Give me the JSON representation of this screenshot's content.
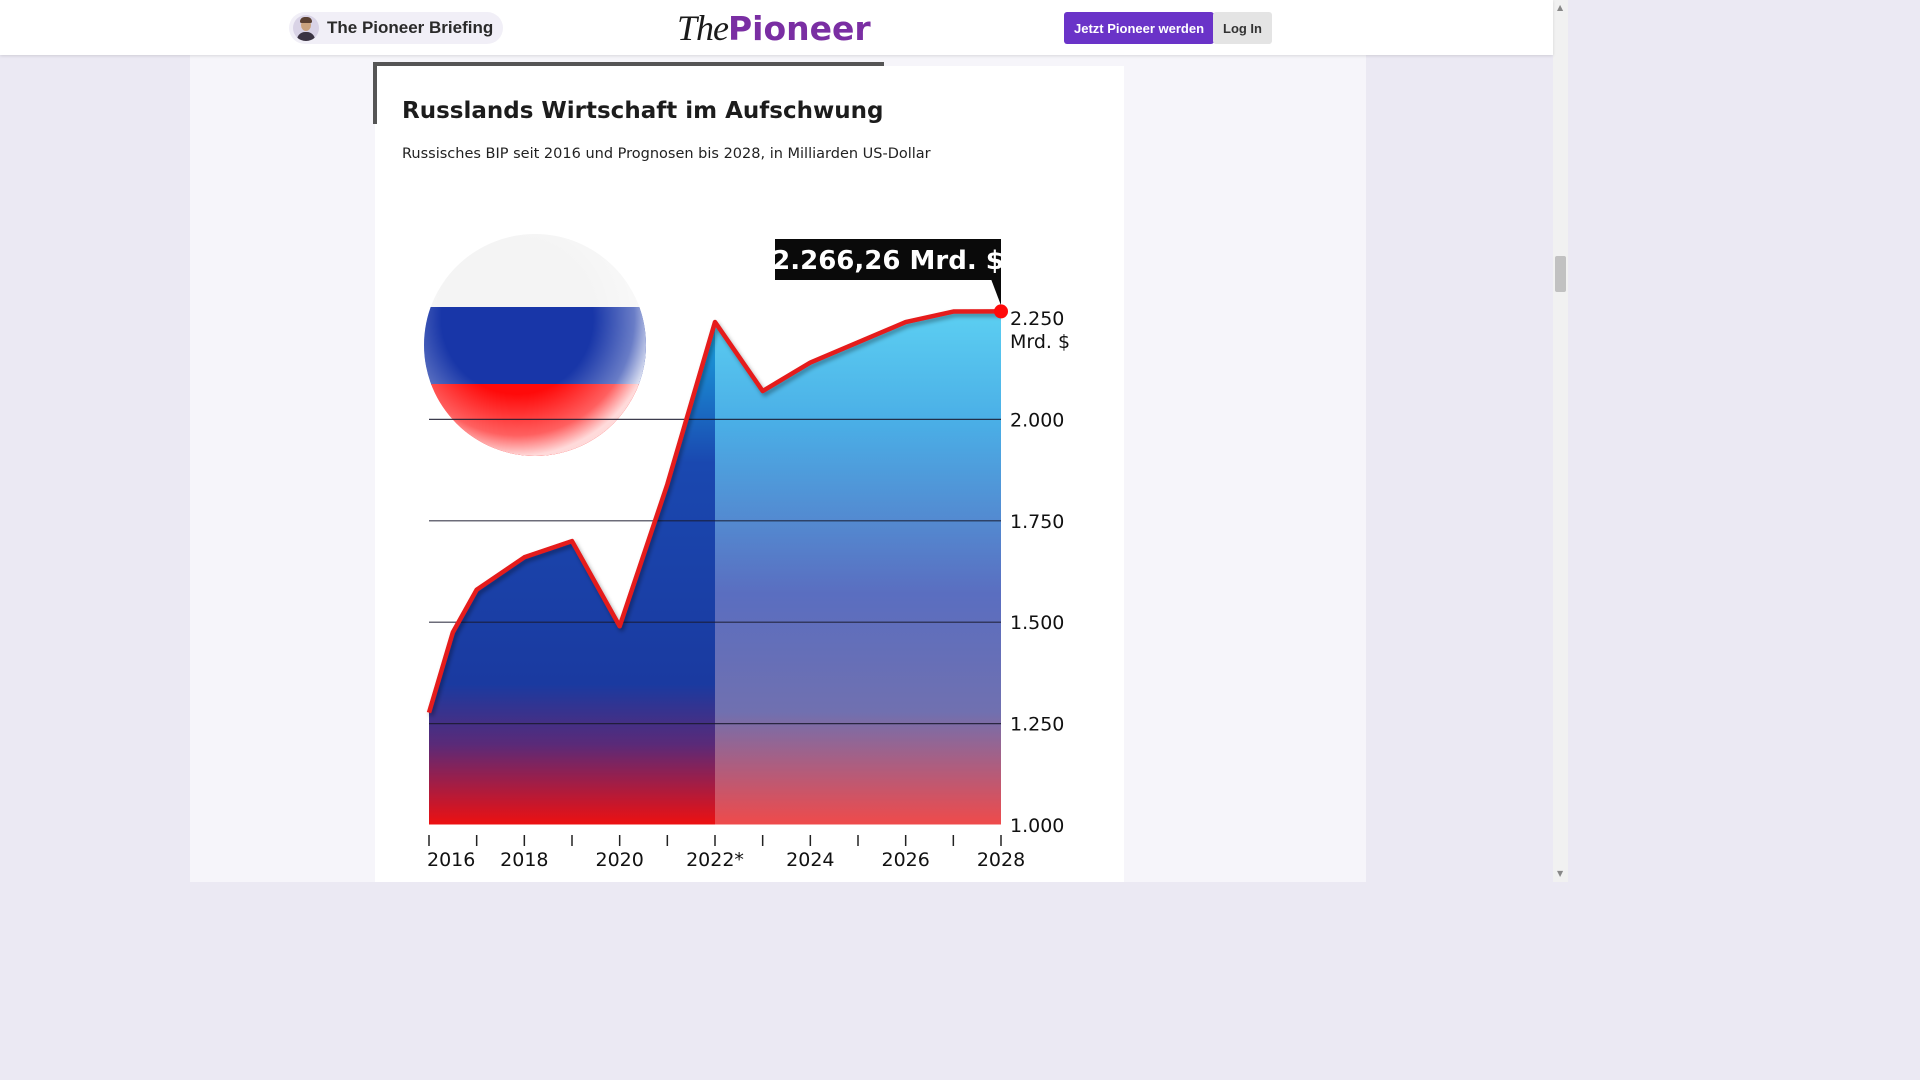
{
  "header": {
    "briefing_label": "The Pioneer Briefing",
    "logo_the": "The",
    "logo_pioneer": "Pioneer",
    "join_button": "Jetzt Pioneer werden",
    "login_button": "Log In"
  },
  "colors": {
    "brand_purple": "#7a2ea3",
    "button_purple": "#6a33c8",
    "line_red": "#e51a1a",
    "area_blue": "#1a3aa0",
    "area_cyan": "#5ccff2"
  },
  "chart_data": {
    "type": "area",
    "title": "Russlands Wirtschaft im Aufschwung",
    "subtitle": "Russisches BIP seit 2016 und Prognosen bis 2028, in Milliarden US-Dollar",
    "x": [
      2016,
      2016.5,
      2017,
      2018,
      2019,
      2020,
      2021,
      2022,
      2023,
      2024,
      2025,
      2026,
      2027,
      2028
    ],
    "values": [
      1277,
      1475,
      1580,
      1660,
      1700,
      1490,
      1840,
      2240,
      2070,
      2140,
      2190,
      2240,
      2266,
      2266.26
    ],
    "forecast_from": 2022,
    "xlim": [
      2016,
      2028
    ],
    "ylim": [
      1000,
      2250
    ],
    "x_ticks": [
      2016,
      2017,
      2018,
      2019,
      2020,
      2021,
      2022,
      2023,
      2024,
      2025,
      2026,
      2027,
      2028
    ],
    "x_tick_labels": [
      {
        "x": 2016,
        "label": "2016"
      },
      {
        "x": 2018,
        "label": "2018"
      },
      {
        "x": 2020,
        "label": "2020"
      },
      {
        "x": 2022,
        "label": "2022*"
      },
      {
        "x": 2024,
        "label": "2024"
      },
      {
        "x": 2026,
        "label": "2026"
      },
      {
        "x": 2028,
        "label": "2028"
      }
    ],
    "y_ticks": [
      {
        "value": 1000,
        "label": "1.000"
      },
      {
        "value": 1250,
        "label": "1.250"
      },
      {
        "value": 1500,
        "label": "1.500"
      },
      {
        "value": 1750,
        "label": "1.750"
      },
      {
        "value": 2000,
        "label": "2.000"
      },
      {
        "value": 2250,
        "label": "2.250"
      }
    ],
    "y_unit": "Mrd. $",
    "callout": {
      "x": 2028,
      "value": 2266.26,
      "label": "2.266,26 Mrd. $"
    },
    "grid": true
  }
}
